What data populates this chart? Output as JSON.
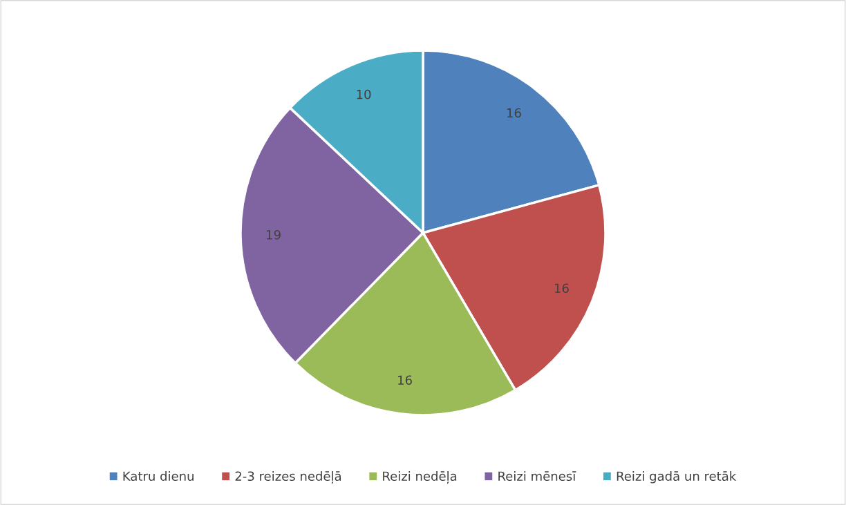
{
  "chart_data": {
    "type": "pie",
    "categories": [
      "Katru dienu",
      "2-3 reizes nedēļā",
      "Reizi nedēļa",
      "Reizi mēnesī",
      "Reizi gadā un retāk"
    ],
    "values": [
      16,
      16,
      16,
      19,
      10
    ],
    "colors": [
      "#4f81bd",
      "#c0504d",
      "#9bbb59",
      "#8064a2",
      "#4bacc6"
    ],
    "data_labels": true,
    "legend": "bottom"
  }
}
